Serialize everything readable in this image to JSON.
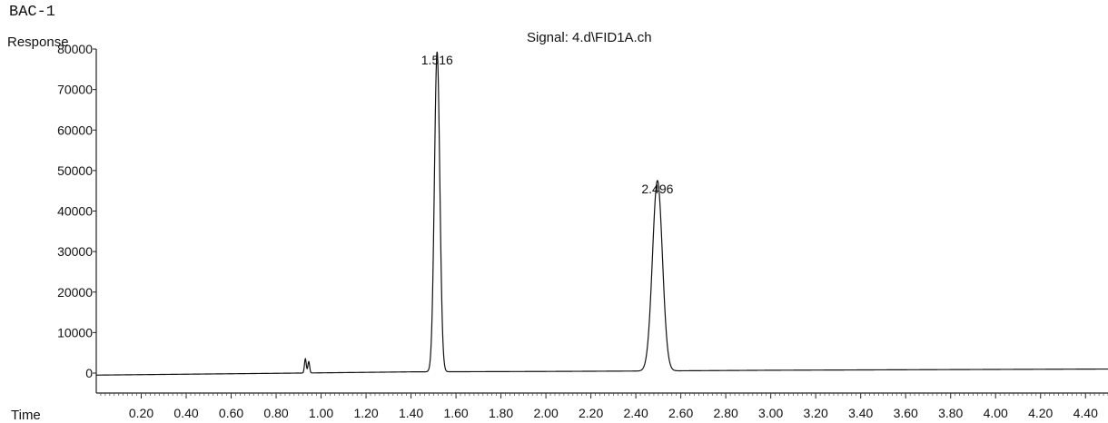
{
  "sample_label": "BAC-1",
  "chart_data": {
    "type": "line",
    "title": "Signal: 4.d\\FID1A.ch",
    "xlabel": "Time",
    "ylabel": "Response",
    "xlim": [
      0.0,
      4.5
    ],
    "ylim": [
      -5000,
      80000
    ],
    "x_ticks": [
      0.2,
      0.4,
      0.6,
      0.8,
      1.0,
      1.2,
      1.4,
      1.6,
      1.8,
      2.0,
      2.2,
      2.4,
      2.6,
      2.8,
      3.0,
      3.2,
      3.4,
      3.6,
      3.8,
      4.0,
      4.2,
      4.4
    ],
    "x_tick_labels": [
      "0.20",
      "0.40",
      "0.60",
      "0.80",
      "1.00",
      "1.20",
      "1.40",
      "1.60",
      "1.80",
      "2.00",
      "2.20",
      "2.40",
      "2.60",
      "2.80",
      "3.00",
      "3.20",
      "3.40",
      "3.60",
      "3.80",
      "4.00",
      "4.20",
      "4.40"
    ],
    "y_ticks": [
      0,
      10000,
      20000,
      30000,
      40000,
      50000,
      60000,
      70000,
      80000
    ],
    "y_tick_labels": [
      "0",
      "10000",
      "20000",
      "30000",
      "40000",
      "50000",
      "60000",
      "70000",
      "80000"
    ],
    "grid": false,
    "baseline": [
      [
        0.0,
        -500
      ],
      [
        0.9,
        0
      ],
      [
        1.4,
        300
      ],
      [
        2.0,
        400
      ],
      [
        2.4,
        500
      ],
      [
        3.0,
        700
      ],
      [
        4.5,
        1000
      ]
    ],
    "peaks": [
      {
        "label": "1.516",
        "retention_time": 1.516,
        "height": 79000,
        "width": 0.012
      },
      {
        "label": "2.496",
        "retention_time": 2.496,
        "height": 47000,
        "width": 0.022
      }
    ],
    "artifacts": [
      {
        "time": 0.93,
        "height": 3500
      },
      {
        "time": 0.945,
        "height": 2800
      }
    ]
  }
}
